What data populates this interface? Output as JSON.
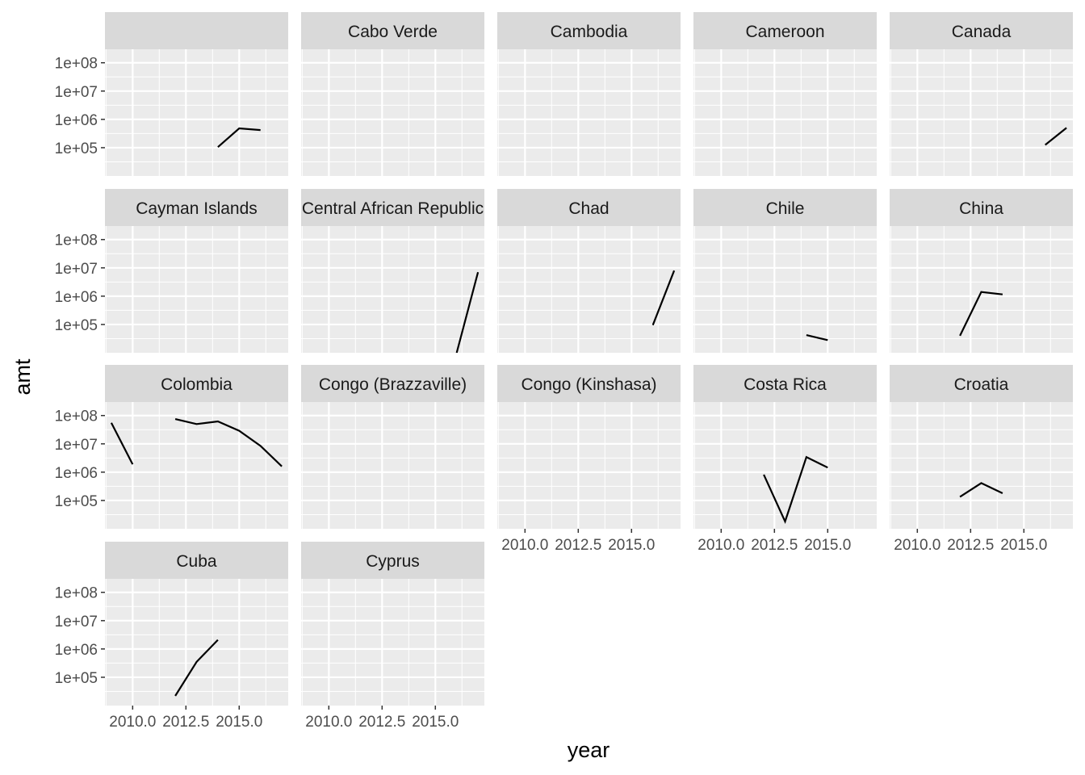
{
  "chart_data": {
    "type": "line",
    "facet": "country",
    "xlabel": "year",
    "ylabel": "amt",
    "y_scale": "log10",
    "xlim": [
      2008.7,
      2017.3
    ],
    "ylim": [
      10000,
      300000000
    ],
    "x_ticks": [
      2010,
      2012.5,
      2015
    ],
    "x_tick_labels": [
      "2010.0",
      "2012.5",
      "2015.0"
    ],
    "y_ticks": [
      100000,
      1000000,
      10000000,
      100000000
    ],
    "y_tick_labels": [
      "1e+05",
      "1e+06",
      "1e+07",
      "1e+08"
    ],
    "grid": true,
    "line_color": "#000000",
    "panel_background": "#ebebeb",
    "strip_background": "#d9d9d9",
    "panels": [
      {
        "title": "",
        "series": [
          {
            "x": [
              2014,
              2015,
              2016
            ],
            "y": [
              105000,
              480000,
              420000
            ]
          }
        ]
      },
      {
        "title": "Cabo Verde",
        "series": []
      },
      {
        "title": "Cambodia",
        "series": []
      },
      {
        "title": "Cameroon",
        "series": []
      },
      {
        "title": "Canada",
        "series": [
          {
            "x": [
              2016,
              2017
            ],
            "y": [
              125000,
              500000
            ]
          }
        ]
      },
      {
        "title": "Cayman Islands",
        "series": []
      },
      {
        "title": "Central African Republic",
        "series": [
          {
            "x": [
              2016,
              2017
            ],
            "y": [
              10000,
              7000000
            ]
          }
        ]
      },
      {
        "title": "Chad",
        "series": [
          {
            "x": [
              2016,
              2017
            ],
            "y": [
              95000,
              8000000
            ]
          }
        ]
      },
      {
        "title": "Chile",
        "series": [
          {
            "x": [
              2014,
              2015
            ],
            "y": [
              42000,
              28000
            ]
          }
        ]
      },
      {
        "title": "China",
        "series": [
          {
            "x": [
              2012,
              2013,
              2014
            ],
            "y": [
              40000,
              1400000,
              1150000
            ]
          }
        ]
      },
      {
        "title": "Colombia",
        "series": [
          {
            "x": [
              2009,
              2010
            ],
            "y": [
              55000000,
              1900000
            ]
          },
          {
            "x": [
              2012,
              2013,
              2014,
              2015,
              2016,
              2017
            ],
            "y": [
              75000000,
              50000000,
              62000000,
              29000000,
              8500000,
              1600000
            ]
          }
        ]
      },
      {
        "title": "Congo (Brazzaville)",
        "series": []
      },
      {
        "title": "Congo (Kinshasa)",
        "series": []
      },
      {
        "title": "Costa Rica",
        "series": [
          {
            "x": [
              2012,
              2013,
              2014,
              2015
            ],
            "y": [
              820000,
              18000,
              3400000,
              1450000
            ]
          }
        ]
      },
      {
        "title": "Croatia",
        "series": [
          {
            "x": [
              2012,
              2013,
              2014
            ],
            "y": [
              135000,
              410000,
              180000
            ]
          }
        ]
      },
      {
        "title": "Cuba",
        "series": [
          {
            "x": [
              2012,
              2013,
              2014
            ],
            "y": [
              22000,
              350000,
              2100000
            ]
          }
        ]
      },
      {
        "title": "Cyprus",
        "series": []
      }
    ]
  }
}
